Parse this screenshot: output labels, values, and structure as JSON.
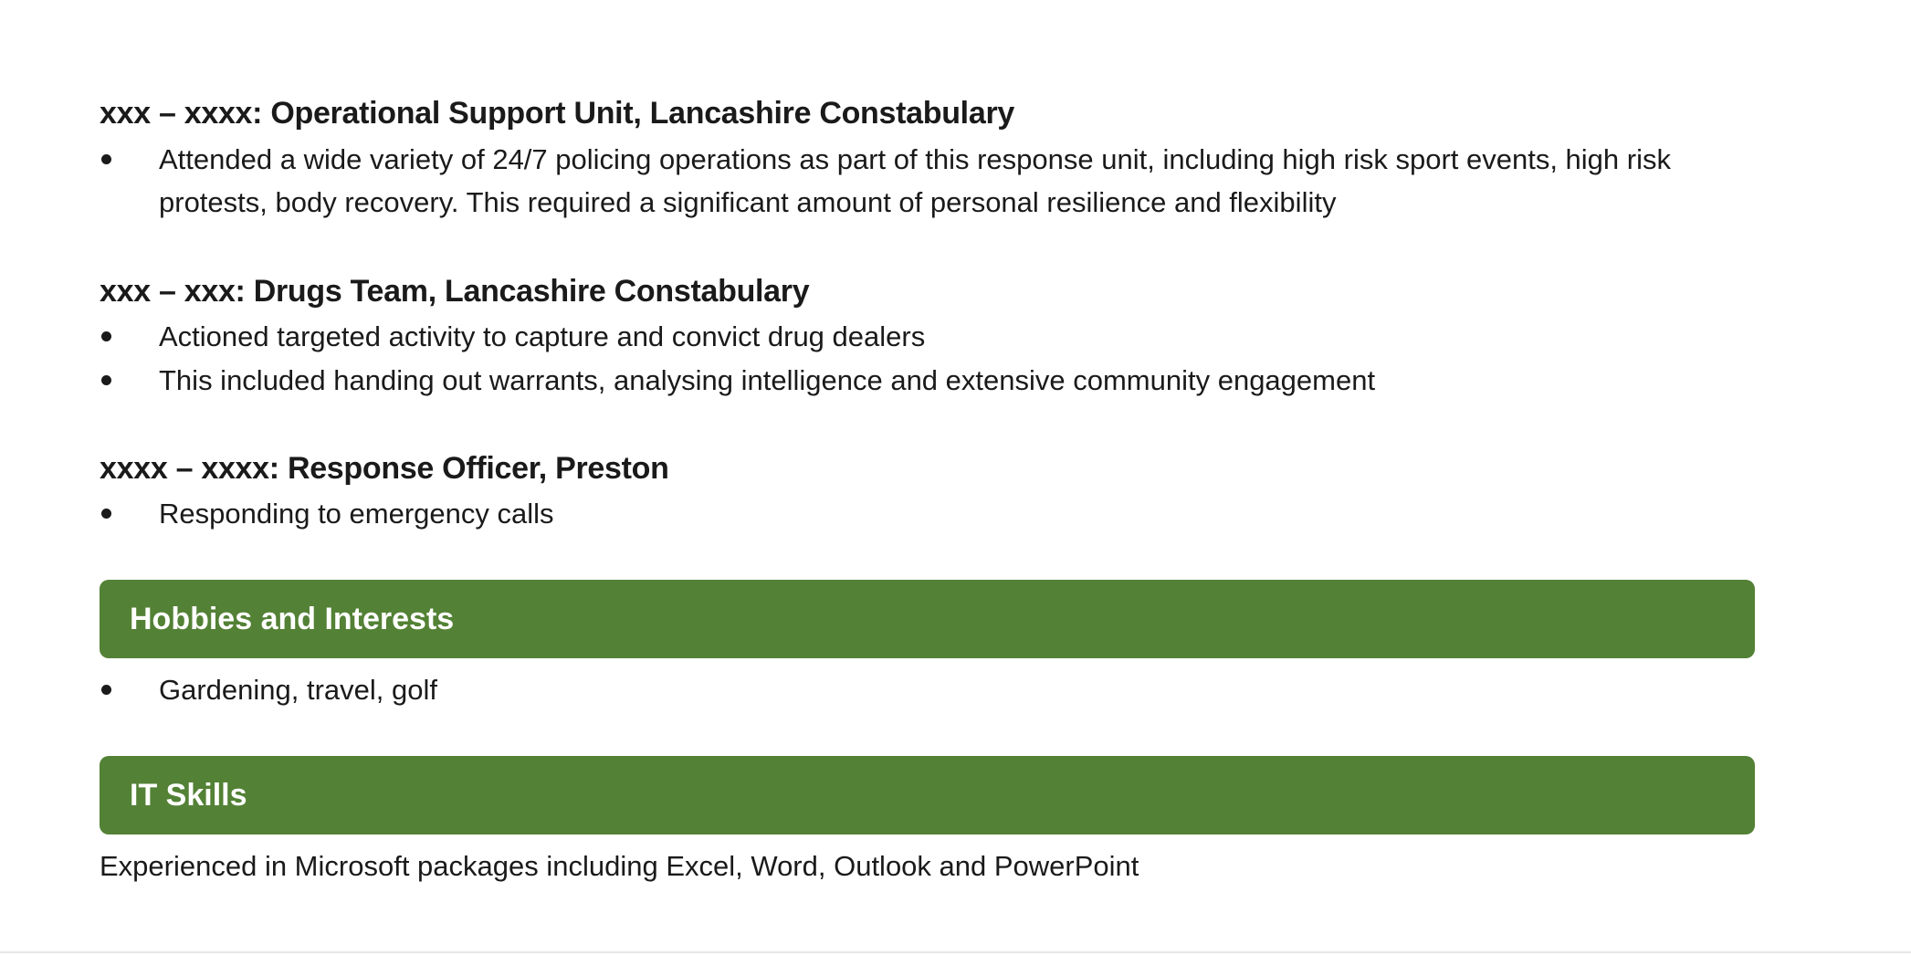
{
  "experience": [
    {
      "heading": "xxx – xxxx: Operational Support Unit, Lancashire Constabulary",
      "bullets": [
        "Attended a wide variety of 24/7 policing operations as part of this response unit, including high risk sport events, high risk protests, body recovery. This required a significant amount of personal resilience and flexibility"
      ]
    },
    {
      "heading": "xxx – xxx: Drugs Team, Lancashire Constabulary",
      "bullets": [
        "Actioned targeted activity to capture and convict drug dealers",
        "This included handing out warrants, analysing intelligence and extensive community engagement"
      ]
    },
    {
      "heading": "xxxx – xxxx: Response Officer, Preston",
      "bullets": [
        "Responding to emergency calls"
      ]
    }
  ],
  "hobbies": {
    "title": "Hobbies and Interests",
    "bullets": [
      "Gardening, travel, golf"
    ]
  },
  "it_skills": {
    "title": "IT Skills",
    "text": "Experienced in Microsoft packages including Excel, Word, Outlook and PowerPoint"
  },
  "colors": {
    "section_bar": "#538135"
  }
}
